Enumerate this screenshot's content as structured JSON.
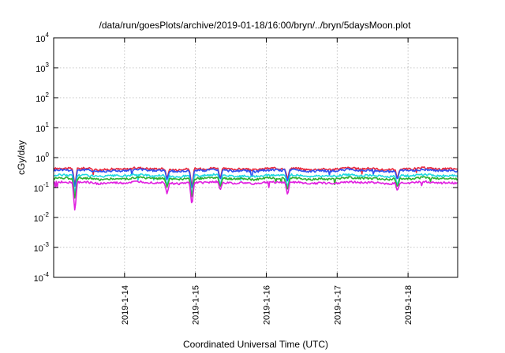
{
  "chart_data": {
    "type": "line",
    "title": "/data/run/goesPlots/archive/2019-01-18/16:00/bryn/../bryn/5daysMoon.plot",
    "xlabel": "Coordinated Universal Time (UTC)",
    "ylabel": "cGy/day",
    "yscale": "log",
    "ylim_exp": [
      -4,
      4
    ],
    "y_ticks": [
      {
        "base": "10",
        "exp": "-4"
      },
      {
        "base": "10",
        "exp": "-3"
      },
      {
        "base": "10",
        "exp": "-2"
      },
      {
        "base": "10",
        "exp": "-1"
      },
      {
        "base": "10",
        "exp": "0"
      },
      {
        "base": "10",
        "exp": "1"
      },
      {
        "base": "10",
        "exp": "2"
      },
      {
        "base": "10",
        "exp": "3"
      },
      {
        "base": "10",
        "exp": "4"
      }
    ],
    "xlim_days": [
      13.0,
      18.7
    ],
    "x_ticks": [
      {
        "label": "2019-1-14",
        "day": 14
      },
      {
        "label": "2019-1-15",
        "day": 15
      },
      {
        "label": "2019-1-16",
        "day": 16
      },
      {
        "label": "2019-1-17",
        "day": 17
      },
      {
        "label": "2019-1-18",
        "day": 18
      }
    ],
    "grid": true,
    "legend": "none",
    "series": [
      {
        "color": "#e8283c",
        "base": 0.42,
        "dips": [
          [
            13.3,
            0.12
          ],
          [
            14.6,
            0.2
          ],
          [
            14.95,
            0.1
          ],
          [
            15.35,
            0.2
          ],
          [
            16.3,
            0.18
          ],
          [
            17.85,
            0.2
          ]
        ]
      },
      {
        "color": "#3050f0",
        "base": 0.37,
        "dips": [
          [
            13.3,
            0.1
          ],
          [
            14.6,
            0.18
          ],
          [
            14.95,
            0.08
          ],
          [
            15.35,
            0.18
          ],
          [
            16.3,
            0.15
          ],
          [
            17.85,
            0.18
          ]
        ]
      },
      {
        "color": "#20d8e0",
        "base": 0.25,
        "dips": [
          [
            13.3,
            0.06
          ],
          [
            14.6,
            0.12
          ],
          [
            14.95,
            0.05
          ],
          [
            15.35,
            0.12
          ],
          [
            16.3,
            0.1
          ],
          [
            17.85,
            0.12
          ]
        ]
      },
      {
        "color": "#30b030",
        "base": 0.2,
        "dips": [
          [
            13.3,
            0.04
          ],
          [
            14.6,
            0.1
          ],
          [
            14.95,
            0.04
          ],
          [
            15.35,
            0.1
          ],
          [
            16.3,
            0.08
          ],
          [
            17.85,
            0.1
          ]
        ]
      },
      {
        "color": "#e020e0",
        "base": 0.145,
        "dips": [
          [
            13.3,
            0.015
          ],
          [
            14.6,
            0.06
          ],
          [
            14.95,
            0.025
          ],
          [
            15.35,
            0.08
          ],
          [
            16.3,
            0.055
          ],
          [
            17.85,
            0.075
          ]
        ]
      }
    ]
  }
}
